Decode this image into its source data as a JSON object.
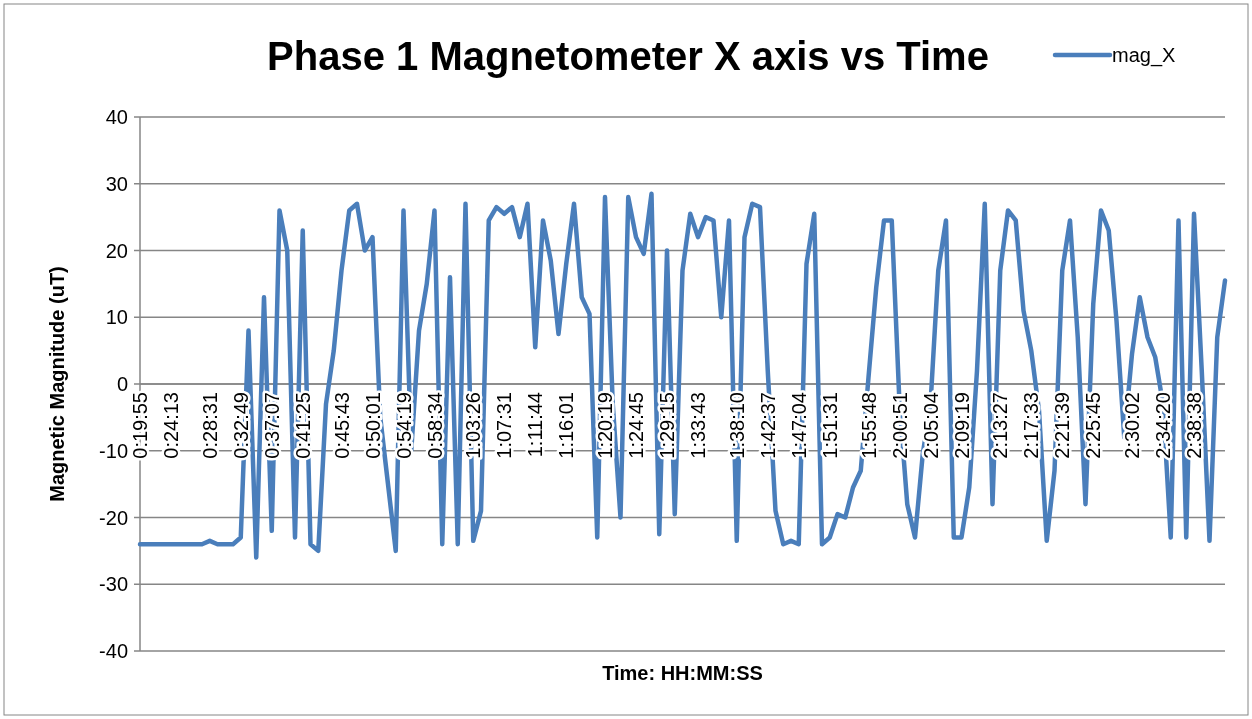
{
  "chart_data": {
    "type": "line",
    "title": "Phase 1 Magnetometer X axis vs Time",
    "xlabel": "Time: HH:MM:SS",
    "ylabel": "Magnetic Magnitude (uT)",
    "categories": [
      "0:19:55",
      null,
      null,
      null,
      "0:24:13",
      null,
      null,
      null,
      null,
      "0:28:31",
      null,
      null,
      null,
      "0:32:49",
      null,
      null,
      null,
      "0:37:07",
      null,
      null,
      null,
      "0:41:25",
      null,
      null,
      null,
      null,
      "0:45:43",
      null,
      null,
      null,
      "0:50:01",
      null,
      null,
      null,
      "0:54:19",
      null,
      null,
      null,
      "0:58:34",
      null,
      null,
      null,
      null,
      "1:03:26",
      null,
      null,
      null,
      "1:07:31",
      null,
      null,
      null,
      "1:11:44",
      null,
      null,
      null,
      "1:16:01",
      null,
      null,
      null,
      null,
      "1:20:19",
      null,
      null,
      null,
      "1:24:45",
      null,
      null,
      null,
      "1:29:15",
      null,
      null,
      null,
      "1:33:43",
      null,
      null,
      null,
      null,
      "1:38:10",
      null,
      null,
      null,
      "1:42:37",
      null,
      null,
      null,
      "1:47:04",
      null,
      null,
      null,
      "1:51:31",
      null,
      null,
      null,
      null,
      "1:55:48",
      null,
      null,
      null,
      "2:00:51",
      null,
      null,
      null,
      "2:05:04",
      null,
      null,
      null,
      "2:09:19",
      null,
      null,
      null,
      null,
      "2:13:27",
      null,
      null,
      null,
      "2:17:33",
      null,
      null,
      null,
      "2:21:39",
      null,
      null,
      null,
      "2:25:45",
      null,
      null,
      null,
      null,
      "2:30:02",
      null,
      null,
      null,
      "2:34:20",
      null,
      null,
      null,
      "2:38:38",
      null,
      null,
      null,
      null
    ],
    "series": [
      {
        "name": "mag_X",
        "color": "#4a7ebb",
        "values": [
          -24,
          -24,
          -24,
          -24,
          -24,
          -24,
          -24,
          -24,
          -24,
          -23.5,
          -24,
          -24,
          -24,
          -23,
          8,
          -26,
          13,
          -22,
          26,
          20,
          -23,
          23,
          -24,
          -25,
          -3,
          5,
          17,
          26,
          27,
          20,
          22,
          -5,
          -15,
          -25,
          26,
          -10,
          8,
          15,
          26,
          -24,
          16,
          -24,
          27,
          -23.5,
          -19,
          24.5,
          26.5,
          25.5,
          26.5,
          22,
          27,
          5.5,
          24.5,
          18.5,
          7.5,
          18,
          27,
          13,
          10.5,
          -23,
          28,
          -3,
          -20,
          28,
          22,
          19.5,
          28.5,
          -22.5,
          20,
          -19.5,
          17,
          25.5,
          22,
          25,
          24.5,
          10,
          24.5,
          -23.5,
          22,
          27,
          26.5,
          2,
          -19,
          -24,
          -23.5,
          -24,
          18,
          25.5,
          -24,
          -23,
          -19.5,
          -20,
          -15.5,
          -13,
          1,
          14.5,
          24.5,
          24.5,
          -3,
          -18,
          -23,
          -10.5,
          -3,
          17,
          24.5,
          -23,
          -23,
          -15.5,
          2,
          27,
          -18,
          17,
          26,
          24.5,
          11,
          5,
          -4,
          -23.5,
          -13,
          17,
          24.5,
          7,
          -18,
          12,
          26,
          23,
          9.5,
          -8,
          4.5,
          13,
          7,
          4,
          -3,
          -23,
          24.5,
          -23,
          25.5,
          2,
          -23.5,
          7,
          15.5
        ]
      }
    ],
    "ylim": [
      -40,
      40
    ],
    "yticks": [
      -40,
      -30,
      -20,
      -10,
      0,
      10,
      20,
      30,
      40
    ],
    "grid": "y",
    "legend": "top right",
    "marker": "none",
    "line_style": "solid"
  }
}
